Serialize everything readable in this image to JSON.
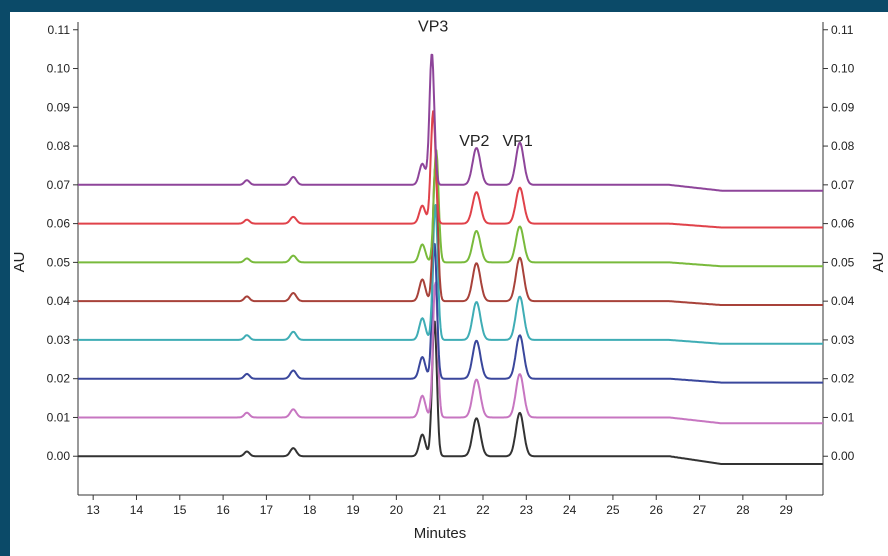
{
  "colors": {
    "background": "#0b4a68",
    "plot_bg": "#ffffff",
    "axis": "#333333"
  },
  "chart_data": {
    "type": "line",
    "title": "",
    "xlabel": "Minutes",
    "ylabel_left": "AU",
    "ylabel_right": "AU",
    "xlim": [
      12.65,
      29.85
    ],
    "ylim": [
      -0.01,
      0.112
    ],
    "x_ticks": [
      13,
      14,
      15,
      16,
      17,
      18,
      19,
      20,
      21,
      22,
      23,
      24,
      25,
      26,
      27,
      28,
      29
    ],
    "y_ticks": [
      "0.00",
      "0.01",
      "0.02",
      "0.03",
      "0.04",
      "0.05",
      "0.06",
      "0.07",
      "0.08",
      "0.09",
      "0.10",
      "0.11"
    ],
    "annotations": [
      {
        "text": "VP3",
        "x": 20.85,
        "y": 0.1095
      },
      {
        "text": "VP2",
        "x": 21.8,
        "y": 0.08
      },
      {
        "text": "VP1",
        "x": 22.8,
        "y": 0.08
      }
    ],
    "peaks": [
      {
        "x": 16.55,
        "w": 0.06,
        "rel": 0.035
      },
      {
        "x": 17.62,
        "w": 0.07,
        "rel": 0.06
      },
      {
        "x": 20.6,
        "w": 0.07,
        "rel": 0.16
      },
      {
        "x": 21.85,
        "w": 0.09,
        "rel": 0.28
      },
      {
        "x": 22.85,
        "w": 0.09,
        "rel": 0.32
      }
    ],
    "series": [
      {
        "color": "#333333",
        "baseline": 0.0,
        "end_baseline": -0.002,
        "peak_top": 0.035,
        "peak_x": 20.88
      },
      {
        "color": "#c776c1",
        "baseline": 0.01,
        "end_baseline": 0.0085,
        "peak_top": 0.045,
        "peak_x": 20.9
      },
      {
        "color": "#3a479c",
        "baseline": 0.02,
        "end_baseline": 0.019,
        "peak_top": 0.055,
        "peak_x": 20.88
      },
      {
        "color": "#3fadb5",
        "baseline": 0.03,
        "end_baseline": 0.029,
        "peak_top": 0.065,
        "peak_x": 20.9
      },
      {
        "color": "#a8423a",
        "baseline": 0.04,
        "end_baseline": 0.039,
        "peak_top": 0.075,
        "peak_x": 20.9
      },
      {
        "color": "#79ba3c",
        "baseline": 0.05,
        "end_baseline": 0.049,
        "peak_top": 0.079,
        "peak_x": 20.92
      },
      {
        "color": "#e0424a",
        "baseline": 0.06,
        "end_baseline": 0.059,
        "peak_top": 0.089,
        "peak_x": 20.85
      },
      {
        "color": "#8e459a",
        "baseline": 0.07,
        "end_baseline": 0.0685,
        "peak_top": 0.104,
        "peak_x": 20.82
      }
    ]
  }
}
